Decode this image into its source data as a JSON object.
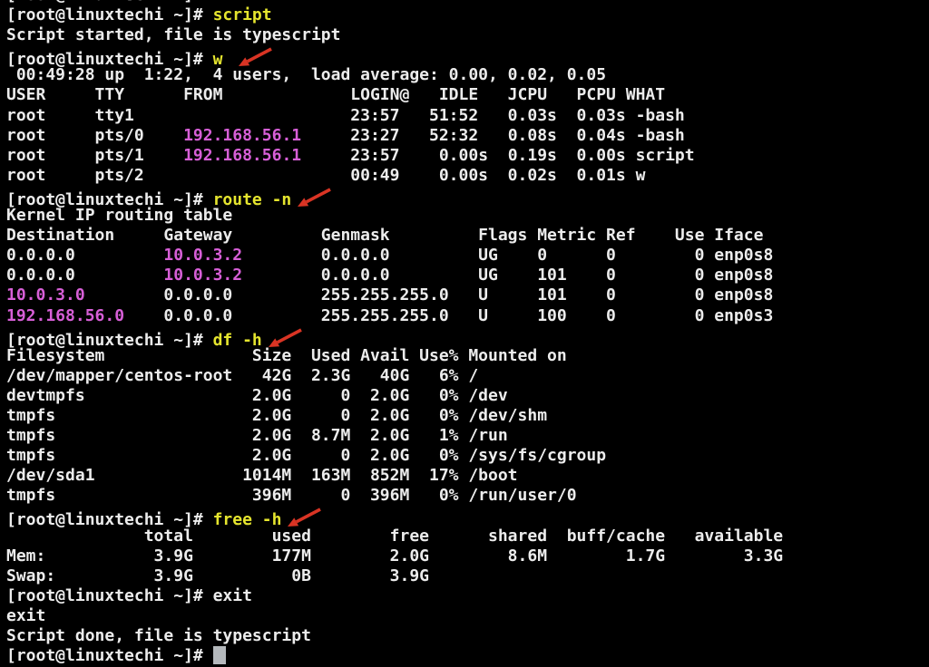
{
  "terminal": {
    "colors": {
      "background": "#000000",
      "foreground": "#ececec",
      "command": "#e5e52e",
      "ip": "#d75fd7",
      "arrow": "#d93424",
      "cursor": "#b4b8bc"
    },
    "prompt": "[root@linuxtechi ~]#",
    "lines": [
      [
        {
          "t": "[root@linuxtechi ~]# ",
          "c": "fg"
        }
      ],
      [
        {
          "t": "[root@linuxtechi ~]# ",
          "c": "fg"
        },
        {
          "t": "script",
          "c": "cmd"
        }
      ],
      [
        {
          "t": "Script started, file is typescript",
          "c": "fg"
        }
      ],
      [
        {
          "t": "[root@linuxtechi ~]# ",
          "c": "fg"
        },
        {
          "t": "w ",
          "c": "cmd"
        },
        {
          "icon": "red-arrow"
        }
      ],
      [
        {
          "t": " 00:49:28 up  1:22,  4 users,  load average: 0.00, 0.02, 0.05",
          "c": "fg"
        }
      ],
      [
        {
          "t": "USER     TTY      FROM             LOGIN@   IDLE   JCPU   PCPU WHAT",
          "c": "fg"
        }
      ],
      [
        {
          "t": "root     tty1                      23:57   51:52   0.03s  0.03s -bash",
          "c": "fg"
        }
      ],
      [
        {
          "t": "root     pts/0    ",
          "c": "fg"
        },
        {
          "t": "192.168.56.1",
          "c": "ip"
        },
        {
          "t": "     23:27   52:32   0.08s  0.04s -bash",
          "c": "fg"
        }
      ],
      [
        {
          "t": "root     pts/1    ",
          "c": "fg"
        },
        {
          "t": "192.168.56.1",
          "c": "ip"
        },
        {
          "t": "     23:57    0.00s  0.19s  0.00s script",
          "c": "fg"
        }
      ],
      [
        {
          "t": "root     pts/2                     00:49    0.00s  0.02s  0.01s w",
          "c": "fg"
        }
      ],
      [
        {
          "t": "[root@linuxtechi ~]# ",
          "c": "fg"
        },
        {
          "t": "route -n",
          "c": "cmd"
        },
        {
          "icon": "red-arrow"
        }
      ],
      [
        {
          "t": "Kernel IP routing table",
          "c": "fg"
        }
      ],
      [
        {
          "t": "Destination     Gateway         Genmask         Flags Metric Ref    Use Iface",
          "c": "fg"
        }
      ],
      [
        {
          "t": "0.0.0.0         ",
          "c": "fg"
        },
        {
          "t": "10.0.3.2",
          "c": "ip"
        },
        {
          "t": "        0.0.0.0         UG    0      0        0 enp0s8",
          "c": "fg"
        }
      ],
      [
        {
          "t": "0.0.0.0         ",
          "c": "fg"
        },
        {
          "t": "10.0.3.2",
          "c": "ip"
        },
        {
          "t": "        0.0.0.0         UG    101    0        0 enp0s8",
          "c": "fg"
        }
      ],
      [
        {
          "t": "10.0.3.0",
          "c": "ip"
        },
        {
          "t": "        0.0.0.0         255.255.255.0   U     101    0        0 enp0s8",
          "c": "fg"
        }
      ],
      [
        {
          "t": "192.168.56.0",
          "c": "ip"
        },
        {
          "t": "    0.0.0.0         255.255.255.0   U     100    0        0 enp0s3",
          "c": "fg"
        }
      ],
      [
        {
          "t": "[root@linuxtechi ~]# ",
          "c": "fg"
        },
        {
          "t": "df -h",
          "c": "cmd"
        },
        {
          "icon": "red-arrow"
        }
      ],
      [
        {
          "t": "Filesystem               Size  Used Avail Use% Mounted on",
          "c": "fg"
        }
      ],
      [
        {
          "t": "/dev/mapper/centos-root   42G  2.3G   40G   6% /",
          "c": "fg"
        }
      ],
      [
        {
          "t": "devtmpfs                 2.0G     0  2.0G   0% /dev",
          "c": "fg"
        }
      ],
      [
        {
          "t": "tmpfs                    2.0G     0  2.0G   0% /dev/shm",
          "c": "fg"
        }
      ],
      [
        {
          "t": "tmpfs                    2.0G  8.7M  2.0G   1% /run",
          "c": "fg"
        }
      ],
      [
        {
          "t": "tmpfs                    2.0G     0  2.0G   0% /sys/fs/cgroup",
          "c": "fg"
        }
      ],
      [
        {
          "t": "/dev/sda1               1014M  163M  852M  17% /boot",
          "c": "fg"
        }
      ],
      [
        {
          "t": "tmpfs                    396M     0  396M   0% /run/user/0",
          "c": "fg"
        }
      ],
      [
        {
          "t": "[root@linuxtechi ~]# ",
          "c": "fg"
        },
        {
          "t": "free -h",
          "c": "cmd"
        },
        {
          "icon": "red-arrow"
        }
      ],
      [
        {
          "t": "              total        used        free      shared  buff/cache   available",
          "c": "fg"
        }
      ],
      [
        {
          "t": "Mem:           3.9G        177M        2.0G        8.6M        1.7G        3.3G",
          "c": "fg"
        }
      ],
      [
        {
          "t": "Swap:          3.9G          0B        3.9G",
          "c": "fg"
        }
      ],
      [
        {
          "t": "[root@linuxtechi ~]# exit",
          "c": "fg"
        }
      ],
      [
        {
          "t": "exit",
          "c": "fg"
        }
      ],
      [
        {
          "t": "Script done, file is typescript",
          "c": "fg"
        }
      ],
      [
        {
          "t": "[root@linuxtechi ~]# ",
          "c": "fg"
        },
        {
          "cursor": true
        }
      ]
    ]
  }
}
